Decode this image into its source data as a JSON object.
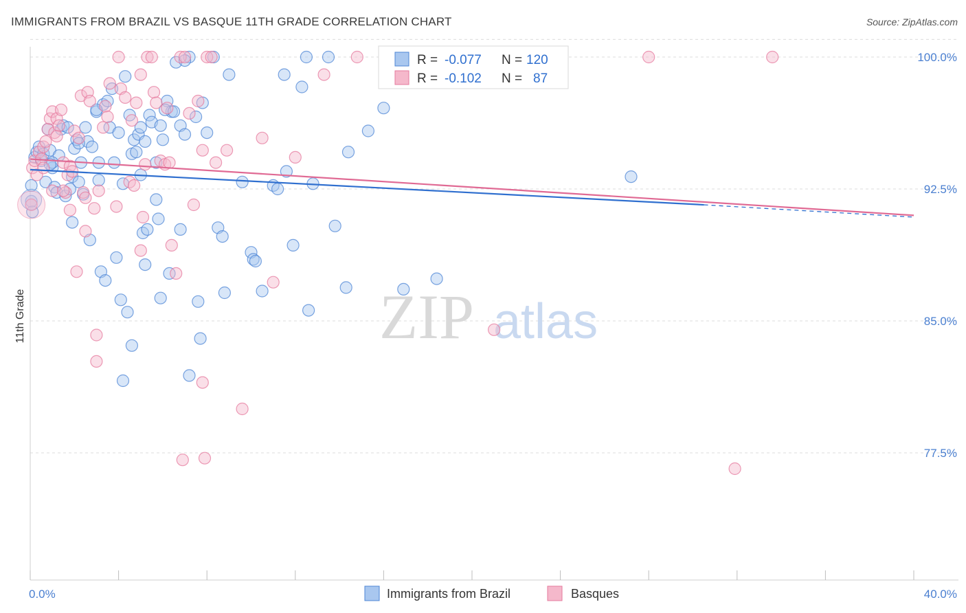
{
  "title": "IMMIGRANTS FROM BRAZIL VS BASQUE 11TH GRADE CORRELATION CHART",
  "source": "Source: ZipAtlas.com",
  "watermark": {
    "part1": "ZIP",
    "part2": "atlas"
  },
  "colors": {
    "blue_fill": "#a9c7ef",
    "blue_stroke": "#4d86d6",
    "blue_line": "#2f6fcf",
    "pink_fill": "#f5b8cb",
    "pink_stroke": "#e57a9d",
    "pink_line": "#e06a94",
    "grid": "#dcdcdc",
    "tick_text": "#4a7fd0"
  },
  "legend": {
    "rows": [
      {
        "r_label": "R =",
        "r_value": "-0.077",
        "n_label": "N =",
        "n_value": "120"
      },
      {
        "r_label": "R =",
        "r_value": "-0.102",
        "n_label": "N =",
        "n_value": "87"
      }
    ]
  },
  "chart_data": {
    "type": "scatter",
    "title": "IMMIGRANTS FROM BRAZIL VS BASQUE 11TH GRADE CORRELATION CHART",
    "xlabel": "",
    "ylabel": "11th Grade",
    "xlim": [
      0,
      40
    ],
    "ylim": [
      70.0,
      101.5
    ],
    "x_tick_labels": [
      "0.0%",
      "40.0%"
    ],
    "y_ticks": [
      77.5,
      85.0,
      92.5,
      100.0
    ],
    "y_tick_labels": [
      "77.5%",
      "85.0%",
      "92.5%",
      "100.0%"
    ],
    "grid": true,
    "legend_position": "top-center",
    "series": [
      {
        "name": "Immigrants from Brazil",
        "r": -0.077,
        "n": 120,
        "trend": {
          "x0": 0,
          "y0": 93.6,
          "x1": 30.5,
          "y1": 91.6,
          "dashed_to_x": 40,
          "dashed_to_y": 90.9
        },
        "points": [
          [
            0.05,
            92.7
          ],
          [
            0.05,
            91.8
          ],
          [
            0.1,
            91.2
          ],
          [
            0.2,
            94.3
          ],
          [
            0.3,
            94.6
          ],
          [
            0.4,
            94.9
          ],
          [
            0.5,
            94.1
          ],
          [
            0.6,
            94.5
          ],
          [
            0.7,
            92.9
          ],
          [
            0.8,
            95.9
          ],
          [
            0.9,
            94.7
          ],
          [
            1.0,
            93.7
          ],
          [
            1.1,
            92.6
          ],
          [
            1.2,
            92.3
          ],
          [
            1.3,
            94.4
          ],
          [
            1.4,
            95.9
          ],
          [
            1.5,
            96.1
          ],
          [
            1.6,
            92.1
          ],
          [
            1.8,
            92.5
          ],
          [
            1.9,
            93.2
          ],
          [
            2.0,
            94.8
          ],
          [
            2.1,
            95.3
          ],
          [
            2.2,
            92.9
          ],
          [
            2.3,
            94.0
          ],
          [
            2.5,
            96.0
          ],
          [
            2.6,
            95.2
          ],
          [
            2.8,
            94.9
          ],
          [
            3.0,
            96.9
          ],
          [
            3.1,
            93.0
          ],
          [
            3.3,
            97.3
          ],
          [
            3.5,
            97.5
          ],
          [
            3.6,
            96.0
          ],
          [
            3.7,
            98.2
          ],
          [
            3.8,
            94.0
          ],
          [
            4.0,
            95.7
          ],
          [
            4.2,
            92.8
          ],
          [
            4.3,
            98.9
          ],
          [
            4.5,
            96.7
          ],
          [
            4.6,
            94.5
          ],
          [
            4.7,
            95.3
          ],
          [
            4.8,
            94.6
          ],
          [
            4.9,
            95.6
          ],
          [
            5.0,
            93.3
          ],
          [
            5.2,
            95.2
          ],
          [
            5.4,
            96.7
          ],
          [
            5.5,
            96.3
          ],
          [
            5.7,
            94.0
          ],
          [
            5.9,
            96.1
          ],
          [
            6.0,
            95.3
          ],
          [
            6.2,
            97.5
          ],
          [
            6.4,
            96.9
          ],
          [
            6.6,
            99.7
          ],
          [
            6.8,
            96.1
          ],
          [
            7.0,
            95.6
          ],
          [
            7.2,
            100.0
          ],
          [
            7.5,
            96.6
          ],
          [
            7.8,
            97.4
          ],
          [
            8.0,
            95.7
          ],
          [
            8.3,
            100.0
          ],
          [
            1.9,
            90.6
          ],
          [
            2.7,
            89.6
          ],
          [
            3.2,
            87.8
          ],
          [
            3.4,
            87.3
          ],
          [
            3.9,
            88.6
          ],
          [
            4.1,
            86.2
          ],
          [
            4.4,
            85.5
          ],
          [
            4.6,
            83.6
          ],
          [
            4.2,
            81.6
          ],
          [
            5.1,
            90.0
          ],
          [
            5.2,
            88.2
          ],
          [
            5.3,
            90.2
          ],
          [
            5.7,
            91.9
          ],
          [
            5.8,
            90.8
          ],
          [
            5.9,
            86.3
          ],
          [
            6.3,
            87.7
          ],
          [
            6.8,
            90.2
          ],
          [
            7.6,
            86.1
          ],
          [
            7.7,
            84.0
          ],
          [
            7.2,
            81.9
          ],
          [
            8.5,
            90.3
          ],
          [
            8.7,
            89.8
          ],
          [
            8.8,
            86.6
          ],
          [
            9.6,
            92.9
          ],
          [
            10.0,
            88.9
          ],
          [
            10.1,
            88.5
          ],
          [
            10.2,
            88.4
          ],
          [
            10.5,
            86.7
          ],
          [
            11.0,
            92.7
          ],
          [
            11.2,
            92.5
          ],
          [
            11.6,
            93.5
          ],
          [
            11.9,
            89.3
          ],
          [
            12.3,
            98.3
          ],
          [
            12.5,
            100.0
          ],
          [
            12.6,
            85.6
          ],
          [
            12.8,
            92.8
          ],
          [
            13.5,
            100.0
          ],
          [
            13.8,
            90.4
          ],
          [
            14.3,
            86.9
          ],
          [
            14.4,
            94.6
          ],
          [
            15.3,
            95.8
          ],
          [
            16.0,
            97.1
          ],
          [
            16.2,
            100.0
          ],
          [
            16.4,
            100.0
          ],
          [
            16.9,
            86.8
          ],
          [
            18.4,
            87.4
          ],
          [
            19.3,
            100.0
          ],
          [
            27.2,
            93.2
          ],
          [
            1.0,
            94.0
          ],
          [
            2.2,
            95.1
          ],
          [
            3.0,
            97.0
          ],
          [
            0.9,
            93.9
          ],
          [
            1.7,
            96.0
          ],
          [
            2.4,
            92.2
          ],
          [
            3.1,
            94.0
          ],
          [
            6.1,
            97.0
          ],
          [
            6.5,
            96.9
          ],
          [
            5.0,
            96.0
          ],
          [
            7.0,
            99.8
          ],
          [
            9.0,
            99.0
          ],
          [
            11.5,
            99.0
          ]
        ]
      },
      {
        "name": "Basques",
        "r": -0.102,
        "n": 87,
        "trend": {
          "x0": 0,
          "y0": 94.2,
          "x1": 40,
          "y1": 91.0
        },
        "points": [
          [
            0.05,
            91.6
          ],
          [
            0.1,
            93.7
          ],
          [
            0.2,
            94.1
          ],
          [
            0.3,
            93.3
          ],
          [
            0.4,
            94.6
          ],
          [
            0.5,
            94.2
          ],
          [
            0.6,
            94.9
          ],
          [
            0.7,
            95.2
          ],
          [
            0.8,
            95.9
          ],
          [
            0.9,
            96.5
          ],
          [
            1.0,
            96.9
          ],
          [
            1.1,
            95.7
          ],
          [
            1.2,
            96.5
          ],
          [
            1.3,
            96.1
          ],
          [
            1.4,
            97.0
          ],
          [
            1.5,
            94.0
          ],
          [
            1.6,
            92.3
          ],
          [
            1.7,
            93.3
          ],
          [
            1.8,
            93.8
          ],
          [
            1.9,
            93.5
          ],
          [
            2.0,
            95.8
          ],
          [
            2.2,
            95.4
          ],
          [
            2.3,
            97.8
          ],
          [
            2.4,
            92.3
          ],
          [
            2.5,
            92.0
          ],
          [
            2.6,
            98.0
          ],
          [
            2.7,
            97.5
          ],
          [
            2.9,
            91.4
          ],
          [
            3.1,
            92.4
          ],
          [
            3.3,
            96.0
          ],
          [
            3.4,
            97.2
          ],
          [
            3.5,
            96.6
          ],
          [
            3.9,
            91.5
          ],
          [
            4.0,
            100.0
          ],
          [
            4.1,
            98.2
          ],
          [
            4.3,
            97.7
          ],
          [
            4.5,
            92.9
          ],
          [
            4.6,
            96.4
          ],
          [
            4.8,
            97.4
          ],
          [
            5.0,
            89.0
          ],
          [
            5.1,
            90.9
          ],
          [
            5.2,
            93.9
          ],
          [
            5.3,
            100.0
          ],
          [
            5.5,
            100.0
          ],
          [
            5.6,
            98.0
          ],
          [
            5.7,
            97.4
          ],
          [
            5.9,
            94.1
          ],
          [
            6.1,
            93.9
          ],
          [
            6.2,
            97.1
          ],
          [
            6.4,
            89.3
          ],
          [
            6.6,
            87.7
          ],
          [
            6.8,
            100.0
          ],
          [
            7.0,
            100.0
          ],
          [
            7.2,
            96.8
          ],
          [
            7.4,
            91.6
          ],
          [
            7.6,
            97.5
          ],
          [
            7.8,
            94.7
          ],
          [
            8.0,
            100.0
          ],
          [
            8.2,
            100.0
          ],
          [
            8.4,
            94.0
          ],
          [
            8.9,
            94.7
          ],
          [
            9.6,
            80.0
          ],
          [
            10.5,
            95.4
          ],
          [
            11.0,
            87.2
          ],
          [
            12.0,
            94.3
          ],
          [
            13.3,
            99.0
          ],
          [
            14.8,
            100.0
          ],
          [
            21.0,
            84.5
          ],
          [
            28.0,
            100.0
          ],
          [
            33.6,
            100.0
          ],
          [
            31.9,
            76.6
          ],
          [
            6.9,
            77.1
          ],
          [
            7.9,
            77.2
          ],
          [
            7.8,
            81.5
          ],
          [
            3.0,
            84.2
          ],
          [
            3.0,
            82.7
          ],
          [
            1.2,
            95.5
          ],
          [
            2.1,
            87.8
          ],
          [
            2.5,
            90.1
          ],
          [
            1.8,
            91.3
          ],
          [
            1.0,
            92.4
          ],
          [
            3.6,
            98.5
          ],
          [
            4.7,
            92.7
          ],
          [
            6.3,
            94.0
          ],
          [
            0.6,
            93.7
          ],
          [
            5.0,
            99.0
          ],
          [
            1.5,
            92.4
          ]
        ]
      }
    ]
  }
}
